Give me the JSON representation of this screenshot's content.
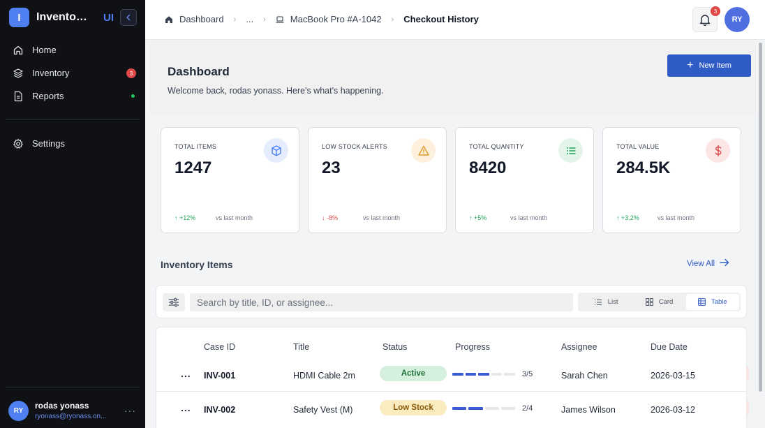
{
  "brand": {
    "logo_letter": "I",
    "name": "Inventory Management",
    "ui_label": "UI"
  },
  "sidebar": {
    "items": [
      {
        "label": "Home",
        "icon": "home-icon"
      },
      {
        "label": "Inventory",
        "icon": "layers-icon",
        "badge": "3"
      },
      {
        "label": "Reports",
        "icon": "file-text-icon",
        "status_dot": "#22c55e"
      }
    ],
    "settings": {
      "label": "Settings",
      "icon": "gear-icon"
    },
    "user": {
      "initials": "RY",
      "name": "rodas yonass",
      "email": "ryonass@ryonass.on...",
      "more": "···"
    }
  },
  "topbar": {
    "breadcrumbs": [
      "Dashboard",
      "...",
      "MacBook Pro #A-1042",
      "Checkout History"
    ],
    "notification_count": "3",
    "avatar_initials": "RY"
  },
  "header": {
    "title": "Dashboard",
    "subtitle": "Welcome back, rodas yonass. Here's what's happening.",
    "new_item_label": "New Item"
  },
  "stats": [
    {
      "label": "TOTAL ITEMS",
      "value": "1247",
      "change": "↑ +12%",
      "period": "vs last month",
      "trend": "up",
      "icon": "box-icon",
      "icon_color": "#4f7ff0",
      "icon_bg": "#e5edfd"
    },
    {
      "label": "LOW STOCK ALERTS",
      "value": "23",
      "change": "↓ -8%",
      "period": "vs last month",
      "trend": "down",
      "icon": "warning-icon",
      "icon_color": "#e09a2c",
      "icon_bg": "#fdf0dc"
    },
    {
      "label": "TOTAL QUANTITY",
      "value": "8420",
      "change": "↑ +5%",
      "period": "vs last month",
      "trend": "up",
      "icon": "list-icon",
      "icon_color": "#22a55b",
      "icon_bg": "#e3f5e8"
    },
    {
      "label": "TOTAL VALUE",
      "value": "284.5K",
      "change": "↑ +3.2%",
      "period": "vs last month",
      "trend": "up",
      "icon": "dollar-icon",
      "icon_color": "#d94848",
      "icon_bg": "#fbe5e5"
    }
  ],
  "inventory": {
    "title": "Inventory Items",
    "view_all": "View All",
    "search_placeholder": "Search by title, ID, or assignee...",
    "views": [
      "List",
      "Card",
      "Table"
    ],
    "active_view": "Table",
    "columns": [
      "Case ID",
      "Title",
      "Status",
      "Progress",
      "Assignee",
      "Due Date"
    ],
    "rows": [
      {
        "actions": "...",
        "case_id": "INV-001",
        "title": "HDMI Cable 2m",
        "status": "Active",
        "progress_done": 3,
        "progress_total": 5,
        "progress_text": "3/5",
        "assignee": "Sarah Chen",
        "due_date": "2026-03-15"
      },
      {
        "actions": "...",
        "case_id": "INV-002",
        "title": "Safety Vest (M)",
        "status": "Low Stock",
        "progress_done": 2,
        "progress_total": 4,
        "progress_text": "2/4",
        "assignee": "James Wilson",
        "due_date": "2026-03-12"
      }
    ]
  },
  "colors": {
    "accent": "#2f5cc4",
    "sidebar_bg": "#0f1115",
    "active_pill": "#d5f0dc",
    "low_stock_pill": "#fbecc0",
    "up": "#22a55b",
    "down": "#d94848"
  }
}
